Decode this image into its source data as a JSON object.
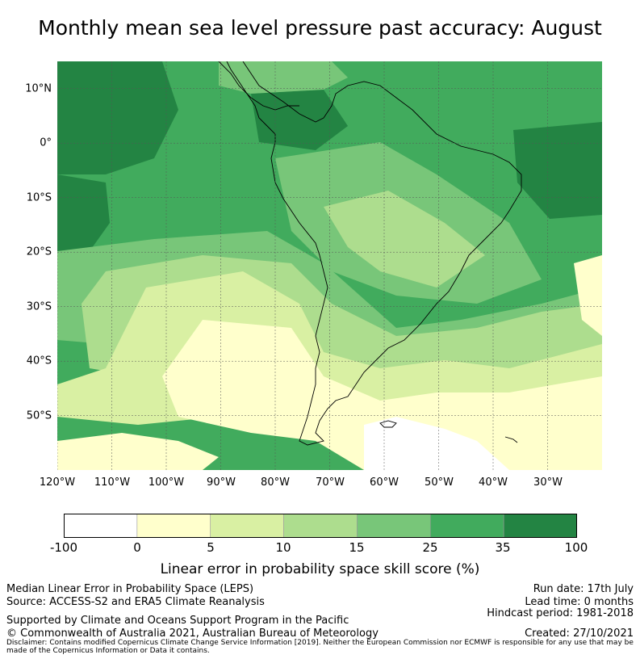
{
  "title": "Monthly mean sea level pressure past accuracy: August",
  "map": {
    "lat_labels": [
      "10°N",
      "0°",
      "10°S",
      "20°S",
      "30°S",
      "40°S",
      "50°S"
    ],
    "lon_labels": [
      "120°W",
      "110°W",
      "100°W",
      "90°W",
      "80°W",
      "70°W",
      "60°W",
      "50°W",
      "40°W",
      "30°W"
    ],
    "extent": {
      "lon_min": -120,
      "lon_max": -20,
      "lat_min": -60,
      "lat_max": 15
    },
    "grid": true
  },
  "colorbar": {
    "ticks": [
      "-100",
      "0",
      "5",
      "10",
      "15",
      "25",
      "35",
      "100"
    ],
    "colors": [
      "#ffffff",
      "#ffffcc",
      "#d9f0a3",
      "#addd8e",
      "#78c679",
      "#41ab5d",
      "#238443"
    ],
    "label": "Linear error in probability space skill score (%)"
  },
  "footer": {
    "line1_left": "Median Linear Error in Probability Space (LEPS)",
    "line2_left": "Source: ACCESS-S2 and ERA5 Climate Reanalysis",
    "line3_left": "Supported by Climate and Oceans Support Program in the Pacific",
    "line4_left": "© Commonwealth of Australia 2021, Australian Bureau of Meteorology",
    "run_date": "Run date: 17th July",
    "lead_time": "Lead time: 0 months",
    "hindcast": "Hindcast period: 1981-2018",
    "created": "Created: 27/10/2021",
    "disclaimer": "Disclaimer: Contains modified Copernicus Climate Change Service Information [2019]. Neither the European Commission nor ECMWF is responsible for any use that may be made of the Copernicus Information or Data it contains."
  }
}
